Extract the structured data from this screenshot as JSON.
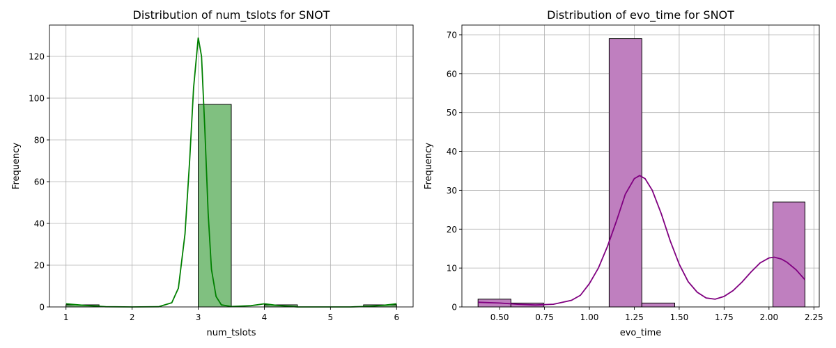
{
  "chart_data": [
    {
      "type": "histogram",
      "title": "Distribution of num_tslots for SNOT",
      "xlabel": "num_tslots",
      "ylabel": "Frequency",
      "xlim": [
        0.75,
        6.25
      ],
      "ylim": [
        0,
        135
      ],
      "xticks": [
        1,
        2,
        3,
        4,
        5,
        6
      ],
      "xtick_labels": [
        "1",
        "2",
        "3",
        "4",
        "5",
        "6"
      ],
      "yticks": [
        0,
        20,
        40,
        60,
        80,
        100,
        120
      ],
      "ytick_labels": [
        "0",
        "20",
        "40",
        "60",
        "80",
        "100",
        "120"
      ],
      "grid": true,
      "color": "#008000",
      "bar_fill": "#80c080",
      "bins": [
        {
          "x0": 1.0,
          "x1": 1.5,
          "value": 1
        },
        {
          "x0": 3.0,
          "x1": 3.5,
          "value": 97
        },
        {
          "x0": 4.0,
          "x1": 4.5,
          "value": 1
        },
        {
          "x0": 5.5,
          "x1": 6.0,
          "value": 1
        }
      ],
      "kde": [
        {
          "x": 1.0,
          "y": 1.5
        },
        {
          "x": 1.3,
          "y": 0.7
        },
        {
          "x": 1.6,
          "y": 0.1
        },
        {
          "x": 2.0,
          "y": 0
        },
        {
          "x": 2.4,
          "y": 0.1
        },
        {
          "x": 2.6,
          "y": 2
        },
        {
          "x": 2.7,
          "y": 9
        },
        {
          "x": 2.8,
          "y": 35
        },
        {
          "x": 2.87,
          "y": 70
        },
        {
          "x": 2.93,
          "y": 105
        },
        {
          "x": 3.0,
          "y": 129
        },
        {
          "x": 3.05,
          "y": 120
        },
        {
          "x": 3.1,
          "y": 85
        },
        {
          "x": 3.15,
          "y": 45
        },
        {
          "x": 3.2,
          "y": 18
        },
        {
          "x": 3.27,
          "y": 5
        },
        {
          "x": 3.35,
          "y": 1
        },
        {
          "x": 3.5,
          "y": 0.2
        },
        {
          "x": 3.8,
          "y": 0.6
        },
        {
          "x": 4.0,
          "y": 1.5
        },
        {
          "x": 4.2,
          "y": 0.7
        },
        {
          "x": 4.5,
          "y": 0
        },
        {
          "x": 5.3,
          "y": 0
        },
        {
          "x": 5.6,
          "y": 0.3
        },
        {
          "x": 5.8,
          "y": 0.8
        },
        {
          "x": 6.0,
          "y": 1.5
        }
      ]
    },
    {
      "type": "histogram",
      "title": "Distribution of evo_time for SNOT",
      "xlabel": "evo_time",
      "ylabel": "Frequency",
      "xlim": [
        0.29,
        2.28
      ],
      "ylim": [
        0,
        72.5
      ],
      "xticks": [
        0.5,
        0.75,
        1.0,
        1.25,
        1.5,
        1.75,
        2.0,
        2.25
      ],
      "xtick_labels": [
        "0.50",
        "0.75",
        "1.00",
        "1.25",
        "1.50",
        "1.75",
        "2.00",
        "2.25"
      ],
      "yticks": [
        0,
        10,
        20,
        30,
        40,
        50,
        60,
        70
      ],
      "ytick_labels": [
        "0",
        "10",
        "20",
        "30",
        "40",
        "50",
        "60",
        "70"
      ],
      "grid": true,
      "color": "#800080",
      "bar_fill": "#bf7fbf",
      "bins": [
        {
          "x0": 0.38,
          "x1": 0.563,
          "value": 2
        },
        {
          "x0": 0.563,
          "x1": 0.745,
          "value": 1
        },
        {
          "x0": 1.11,
          "x1": 1.292,
          "value": 69
        },
        {
          "x0": 1.292,
          "x1": 1.475,
          "value": 1
        },
        {
          "x0": 2.022,
          "x1": 2.2,
          "value": 27
        }
      ],
      "kde": [
        {
          "x": 0.38,
          "y": 1.2
        },
        {
          "x": 0.5,
          "y": 1.0
        },
        {
          "x": 0.6,
          "y": 0.7
        },
        {
          "x": 0.7,
          "y": 0.5
        },
        {
          "x": 0.8,
          "y": 0.7
        },
        {
          "x": 0.9,
          "y": 1.7
        },
        {
          "x": 0.95,
          "y": 3
        },
        {
          "x": 1.0,
          "y": 6
        },
        {
          "x": 1.05,
          "y": 10
        },
        {
          "x": 1.1,
          "y": 15.5
        },
        {
          "x": 1.15,
          "y": 22
        },
        {
          "x": 1.2,
          "y": 29
        },
        {
          "x": 1.25,
          "y": 33
        },
        {
          "x": 1.28,
          "y": 33.8
        },
        {
          "x": 1.31,
          "y": 33
        },
        {
          "x": 1.35,
          "y": 30
        },
        {
          "x": 1.4,
          "y": 24
        },
        {
          "x": 1.45,
          "y": 17
        },
        {
          "x": 1.5,
          "y": 11
        },
        {
          "x": 1.55,
          "y": 6.5
        },
        {
          "x": 1.6,
          "y": 3.8
        },
        {
          "x": 1.65,
          "y": 2.3
        },
        {
          "x": 1.7,
          "y": 2
        },
        {
          "x": 1.75,
          "y": 2.7
        },
        {
          "x": 1.8,
          "y": 4.2
        },
        {
          "x": 1.85,
          "y": 6.4
        },
        {
          "x": 1.9,
          "y": 9
        },
        {
          "x": 1.95,
          "y": 11.3
        },
        {
          "x": 2.0,
          "y": 12.6
        },
        {
          "x": 2.03,
          "y": 12.8
        },
        {
          "x": 2.07,
          "y": 12.3
        },
        {
          "x": 2.1,
          "y": 11.5
        },
        {
          "x": 2.15,
          "y": 9.6
        },
        {
          "x": 2.2,
          "y": 7
        }
      ]
    }
  ]
}
